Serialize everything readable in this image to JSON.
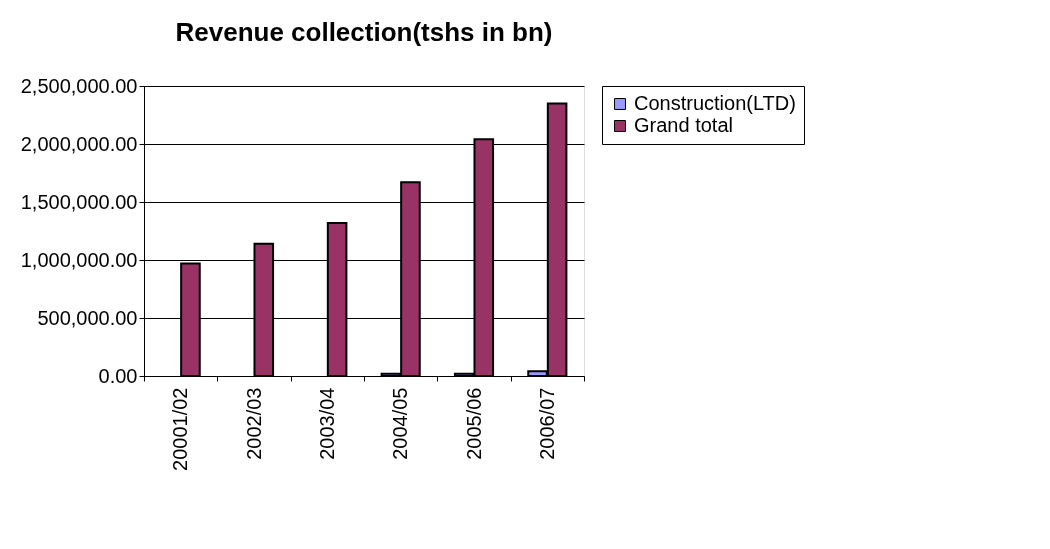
{
  "chart_data": {
    "type": "bar",
    "title": "Revenue collection(tshs in bn)",
    "categories": [
      "20001/02",
      "2002/03",
      "2003/04",
      "2004/05",
      "2005/06",
      "2006/07"
    ],
    "series": [
      {
        "name": "Construction(LTD)",
        "color": "#9999ff",
        "values": [
          0,
          0,
          0,
          20000,
          20000,
          40000
        ]
      },
      {
        "name": " Grand total",
        "color": "#993366",
        "values": [
          970000,
          1140000,
          1320000,
          1670000,
          2040000,
          2350000
        ]
      }
    ],
    "ylim": [
      0,
      2500000
    ],
    "yticks": [
      {
        "value": 0,
        "label": "0.00"
      },
      {
        "value": 500000,
        "label": "500,000.00"
      },
      {
        "value": 1000000,
        "label": "1,000,000.00"
      },
      {
        "value": 1500000,
        "label": "1,500,000.00"
      },
      {
        "value": 2000000,
        "label": "2,000,000.00"
      },
      {
        "value": 2500000,
        "label": "2,500,000.00"
      }
    ],
    "grid": "y",
    "legend": "right"
  }
}
